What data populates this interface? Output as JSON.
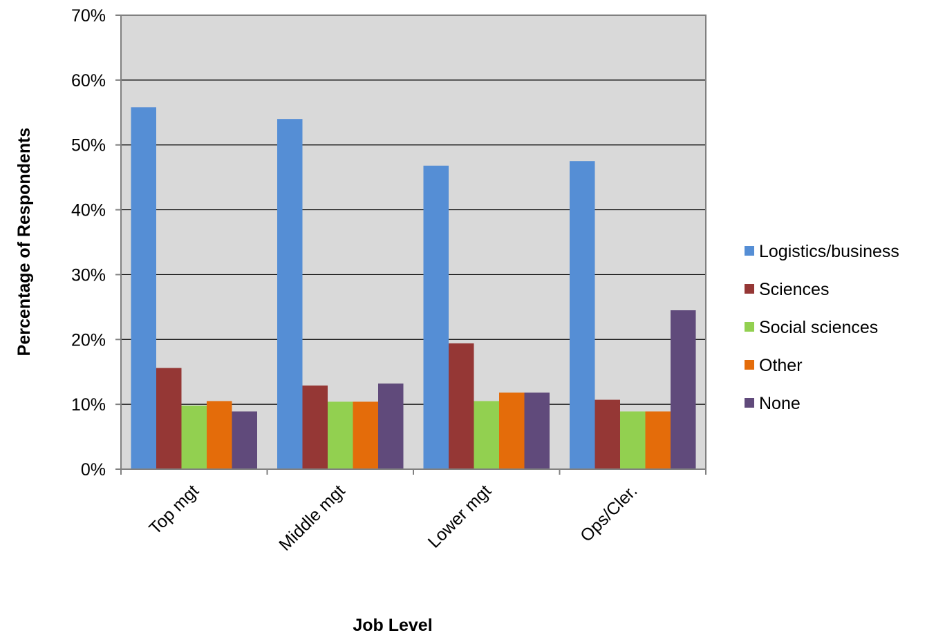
{
  "chart_data": {
    "type": "bar",
    "title": "",
    "xlabel": "Job Level",
    "ylabel": "Percentage of Respondents",
    "ylim": [
      0,
      0.7
    ],
    "yticks": [
      0,
      0.1,
      0.2,
      0.3,
      0.4,
      0.5,
      0.6,
      0.7
    ],
    "ytick_labels": [
      "0%",
      "10%",
      "20%",
      "30%",
      "40%",
      "50%",
      "60%",
      "70%"
    ],
    "categories": [
      "Top mgt",
      "Middle mgt",
      "Lower mgt",
      "Ops/Cler."
    ],
    "grid": "horizontal major gridlines",
    "legend_position": "right",
    "plot_background": "#d9d9d9",
    "series": [
      {
        "name": "Logistics/business",
        "color": "#558ed5",
        "values": [
          0.558,
          0.54,
          0.468,
          0.475
        ]
      },
      {
        "name": "Sciences",
        "color": "#953735",
        "values": [
          0.156,
          0.129,
          0.194,
          0.107
        ]
      },
      {
        "name": "Social sciences",
        "color": "#92d050",
        "values": [
          0.098,
          0.104,
          0.105,
          0.089
        ]
      },
      {
        "name": "Other",
        "color": "#e46c0a",
        "values": [
          0.105,
          0.104,
          0.118,
          0.089
        ]
      },
      {
        "name": "None",
        "color": "#604a7b",
        "values": [
          0.089,
          0.132,
          0.118,
          0.245
        ]
      }
    ]
  }
}
